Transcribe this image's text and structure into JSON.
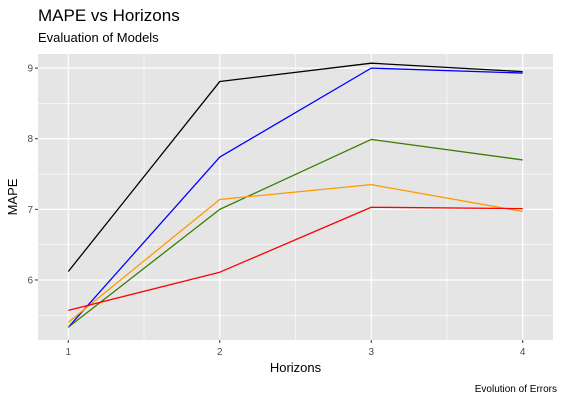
{
  "chart_data": {
    "type": "line",
    "title": "MAPE vs Horizons",
    "subtitle": "Evaluation of Models",
    "caption": "Evolution of Errors",
    "xlabel": "Horizons",
    "ylabel": "MAPE",
    "x": [
      1,
      2,
      3,
      4
    ],
    "x_ticks": [
      "1",
      "2",
      "3",
      "4"
    ],
    "y_ticks": [
      "6",
      "7",
      "8",
      "9"
    ],
    "xlim": [
      0.8,
      4.2
    ],
    "ylim": [
      5.15,
      9.2
    ],
    "grid": true,
    "legend": "none",
    "colors": {
      "panel_background": "#e5e5e5",
      "grid": "#ffffff"
    },
    "series": [
      {
        "color": "#000000",
        "values": [
          6.12,
          8.81,
          9.07,
          8.95
        ]
      },
      {
        "color": "#0000ff",
        "values": [
          5.33,
          7.74,
          9.0,
          8.93
        ]
      },
      {
        "color": "#3a7d00",
        "values": [
          5.33,
          7.0,
          7.99,
          7.7
        ]
      },
      {
        "color": "#ff9900",
        "values": [
          5.4,
          7.14,
          7.35,
          6.97
        ]
      },
      {
        "color": "#ff0000",
        "values": [
          5.57,
          6.11,
          7.03,
          7.01
        ]
      }
    ]
  }
}
